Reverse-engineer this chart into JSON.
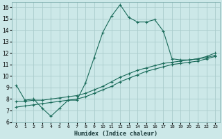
{
  "xlabel": "Humidex (Indice chaleur)",
  "background_color": "#cce8e8",
  "grid_color": "#aacccc",
  "line_color": "#1a6b5a",
  "xlim": [
    -0.5,
    23.5
  ],
  "ylim": [
    6,
    16.4
  ],
  "xticks": [
    0,
    1,
    2,
    3,
    4,
    5,
    6,
    7,
    8,
    9,
    10,
    11,
    12,
    13,
    14,
    15,
    16,
    17,
    18,
    19,
    20,
    21,
    22,
    23
  ],
  "yticks": [
    6,
    7,
    8,
    9,
    10,
    11,
    12,
    13,
    14,
    15,
    16
  ],
  "line1_x": [
    0,
    1,
    2,
    3,
    4,
    5,
    6,
    7,
    8,
    9,
    10,
    11,
    12,
    13,
    14,
    15,
    16,
    17,
    18,
    19,
    20,
    21,
    22,
    23
  ],
  "line1_y": [
    9.2,
    7.9,
    8.0,
    7.2,
    6.5,
    7.2,
    7.9,
    7.9,
    9.4,
    11.6,
    13.8,
    15.2,
    16.2,
    15.1,
    14.7,
    14.7,
    14.9,
    13.9,
    11.5,
    11.4,
    11.4,
    11.5,
    11.7,
    12.0
  ],
  "line2_x": [
    0,
    1,
    2,
    3,
    4,
    5,
    6,
    7,
    8,
    9,
    10,
    11,
    12,
    13,
    14,
    15,
    16,
    17,
    18,
    19,
    20,
    21,
    22,
    23
  ],
  "line2_y": [
    7.8,
    7.8,
    7.9,
    7.9,
    8.0,
    8.1,
    8.2,
    8.3,
    8.5,
    8.8,
    9.1,
    9.5,
    9.9,
    10.2,
    10.5,
    10.7,
    10.9,
    11.1,
    11.2,
    11.3,
    11.4,
    11.5,
    11.6,
    11.8
  ],
  "line3_x": [
    0,
    1,
    2,
    3,
    4,
    5,
    6,
    7,
    8,
    9,
    10,
    11,
    12,
    13,
    14,
    15,
    16,
    17,
    18,
    19,
    20,
    21,
    22,
    23
  ],
  "line3_y": [
    7.3,
    7.4,
    7.5,
    7.6,
    7.7,
    7.8,
    7.9,
    8.0,
    8.2,
    8.5,
    8.8,
    9.1,
    9.5,
    9.8,
    10.1,
    10.4,
    10.6,
    10.8,
    11.0,
    11.1,
    11.2,
    11.3,
    11.5,
    11.7
  ]
}
